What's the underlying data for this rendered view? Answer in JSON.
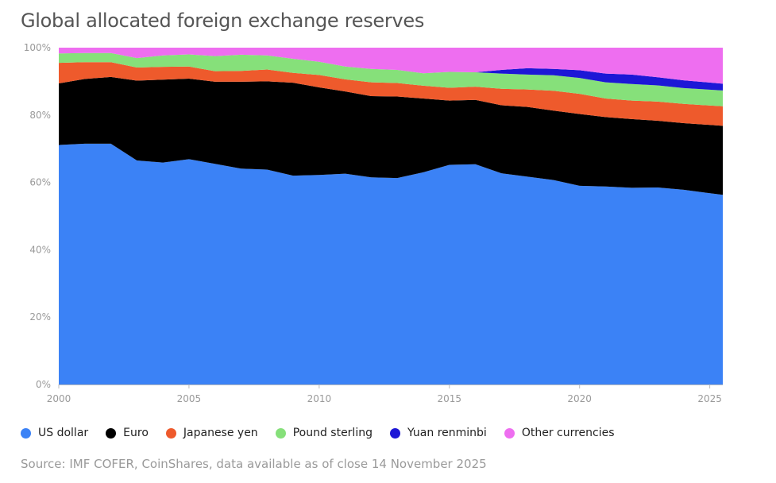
{
  "chart_data": {
    "type": "area",
    "stacked": true,
    "title": "Global allocated foreign exchange reserves",
    "xlabel": "",
    "ylabel": "",
    "xlim": [
      2000,
      2025.5
    ],
    "ylim": [
      0,
      100
    ],
    "x_ticks": [
      2000,
      2005,
      2010,
      2015,
      2020,
      2025
    ],
    "x_tick_labels": [
      "2000",
      "2005",
      "2010",
      "2015",
      "2020",
      "2025"
    ],
    "y_ticks": [
      0,
      20,
      40,
      60,
      80,
      100
    ],
    "y_tick_labels": [
      "0%",
      "20%",
      "40%",
      "60%",
      "80%",
      "100%"
    ],
    "grid": false,
    "legend_position": "bottom-left",
    "x": [
      2000,
      2001,
      2002,
      2003,
      2004,
      2005,
      2006,
      2007,
      2008,
      2009,
      2010,
      2011,
      2012,
      2013,
      2014,
      2015,
      2016,
      2017,
      2018,
      2019,
      2020,
      2021,
      2022,
      2023,
      2024,
      2025.5
    ],
    "series": [
      {
        "name": "US dollar",
        "color": "#3b82f6",
        "values": [
          71.1,
          71.5,
          71.5,
          66.5,
          65.9,
          66.9,
          65.5,
          64.1,
          63.8,
          62.0,
          62.2,
          62.6,
          61.5,
          61.3,
          63.0,
          65.2,
          65.4,
          62.7,
          61.7,
          60.7,
          59.0,
          58.8,
          58.4,
          58.5,
          57.8,
          56.3
        ]
      },
      {
        "name": "Euro",
        "color": "#000000",
        "values": [
          18.3,
          19.2,
          19.8,
          23.7,
          24.6,
          23.9,
          24.4,
          25.8,
          26.2,
          27.6,
          26.0,
          24.4,
          24.1,
          24.2,
          21.9,
          19.1,
          19.1,
          20.2,
          20.7,
          20.6,
          21.3,
          20.6,
          20.4,
          19.8,
          19.8,
          20.5
        ]
      },
      {
        "name": "Japanese yen",
        "color": "#ee5a2c",
        "values": [
          6.1,
          5.0,
          4.4,
          3.9,
          3.8,
          3.6,
          3.1,
          3.2,
          3.5,
          2.9,
          3.7,
          3.6,
          4.1,
          4.0,
          3.8,
          3.8,
          3.9,
          4.9,
          5.2,
          5.9,
          6.0,
          5.5,
          5.5,
          5.7,
          5.7,
          5.8
        ]
      },
      {
        "name": "Pound sterling",
        "color": "#86e07a",
        "values": [
          2.8,
          2.7,
          2.7,
          2.8,
          3.4,
          3.6,
          4.5,
          4.8,
          4.2,
          4.2,
          3.9,
          3.8,
          4.0,
          3.9,
          3.7,
          4.7,
          4.3,
          4.5,
          4.4,
          4.6,
          4.7,
          4.8,
          4.9,
          4.8,
          4.7,
          4.7
        ]
      },
      {
        "name": "Yuan renminbi",
        "color": "#1d17d6",
        "values": [
          0,
          0,
          0,
          0,
          0,
          0,
          0,
          0,
          0,
          0,
          0,
          0,
          0,
          0,
          0,
          0,
          0,
          1.1,
          1.9,
          1.9,
          2.3,
          2.6,
          2.8,
          2.4,
          2.3,
          2.0
        ]
      },
      {
        "name": "Other currencies",
        "color": "#ee6ef0",
        "values": [
          1.7,
          1.6,
          1.6,
          3.1,
          2.3,
          2.0,
          2.5,
          2.1,
          2.3,
          3.3,
          4.2,
          5.6,
          6.3,
          6.6,
          7.6,
          7.2,
          7.3,
          6.6,
          6.1,
          6.3,
          6.7,
          7.7,
          8.0,
          8.8,
          9.7,
          10.7
        ]
      }
    ]
  },
  "source": "Source: IMF COFER, CoinShares, data available as of close 14 November 2025"
}
